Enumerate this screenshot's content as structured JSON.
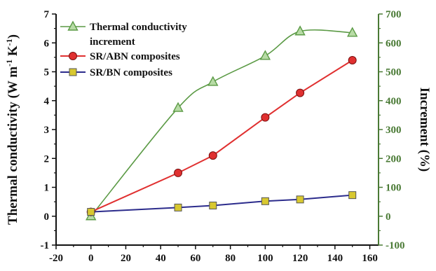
{
  "chart_data": {
    "type": "line",
    "xlabel": "",
    "ylabel_left": "Thermal conductivity (W m⁻¹ K⁻¹)",
    "ylabel_left_parts": {
      "main": "Thermal conductivity (W m",
      "sup1": "-1",
      "mid": " K",
      "sup2": "-1",
      "end": ")"
    },
    "ylabel_right": "Increment (%)",
    "xlim": [
      -20,
      165
    ],
    "ylim_left": [
      -1,
      7
    ],
    "ylim_right": [
      -100,
      700
    ],
    "x_ticks": [
      "-20",
      "0",
      "20",
      "40",
      "60",
      "80",
      "100",
      "120",
      "140",
      "160"
    ],
    "y_left_ticks": [
      "-1",
      "0",
      "1",
      "2",
      "3",
      "4",
      "5",
      "6",
      "7"
    ],
    "y_right_ticks": [
      "-100",
      "0",
      "100",
      "200",
      "300",
      "400",
      "500",
      "600",
      "700"
    ],
    "legend_position": "top-left",
    "colors": {
      "increment": "#5b9a45",
      "sr_abn": "#e03030",
      "sr_bn": "#2c2c8c",
      "right_axis": "#4a7a35",
      "left_axis": "#111111"
    },
    "series": [
      {
        "name": "Thermal conductivity increment",
        "name_lines": [
          "Thermal conductivity",
          "increment"
        ],
        "axis": "right",
        "marker": "triangle",
        "x": [
          0,
          50,
          70,
          100,
          120,
          150
        ],
        "y": [
          0,
          375,
          465,
          555,
          640,
          635
        ]
      },
      {
        "name": "SR/ABN composites",
        "axis": "left",
        "marker": "circle",
        "x": [
          0,
          50,
          70,
          100,
          120,
          150
        ],
        "y": [
          0.15,
          1.5,
          2.1,
          3.42,
          4.27,
          5.4
        ]
      },
      {
        "name": "SR/BN composites",
        "axis": "left",
        "marker": "square",
        "x": [
          0,
          50,
          70,
          100,
          120,
          150
        ],
        "y": [
          0.15,
          0.3,
          0.37,
          0.52,
          0.58,
          0.73
        ]
      }
    ]
  }
}
